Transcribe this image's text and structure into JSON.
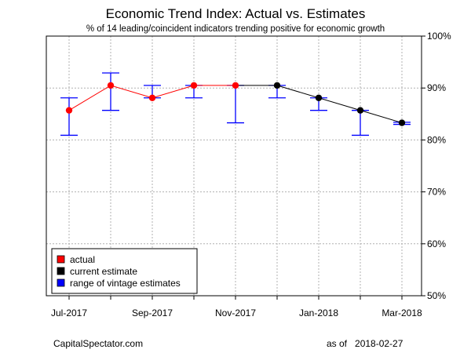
{
  "chart_data": {
    "type": "line",
    "title": "Economic Trend Index: Actual vs. Estimates",
    "subtitle": "% of 14 leading/coincident indicators trending positive for economic growth",
    "x": [
      "Jul-2017",
      "Aug-2017",
      "Sep-2017",
      "Oct-2017",
      "Nov-2017",
      "Dec-2017",
      "Jan-2018",
      "Feb-2018",
      "Mar-2018"
    ],
    "xtick_labels": [
      "Jul-2017",
      "",
      "Sep-2017",
      "",
      "Nov-2017",
      "",
      "Jan-2018",
      "",
      "Mar-2018"
    ],
    "ylim": [
      50,
      100
    ],
    "yticks": [
      50,
      60,
      70,
      80,
      90,
      100
    ],
    "ytick_labels": [
      "50%",
      "60%",
      "70%",
      "80%",
      "90%",
      "100%"
    ],
    "grid": true,
    "legend_position": "bottom-left",
    "series": [
      {
        "name": "actual",
        "color": "#ff0000",
        "values": [
          85.7,
          90.5,
          88.1,
          90.5,
          90.5,
          null,
          null,
          null,
          null
        ]
      },
      {
        "name": "current estimate",
        "color": "#000000",
        "values": [
          null,
          null,
          null,
          null,
          90.5,
          90.5,
          88.1,
          85.7,
          83.3
        ]
      },
      {
        "name": "range of vintage estimates",
        "color": "#0000ff",
        "low": [
          80.9,
          85.7,
          88.1,
          88.1,
          83.3,
          88.1,
          85.7,
          80.9,
          83.0
        ],
        "high": [
          88.1,
          92.9,
          90.5,
          90.5,
          90.5,
          90.5,
          88.1,
          85.7,
          83.4
        ]
      }
    ]
  },
  "footer": {
    "source": "CapitalSpectator.com",
    "as_of_label": "as of",
    "as_of_date": "2018-02-27"
  }
}
